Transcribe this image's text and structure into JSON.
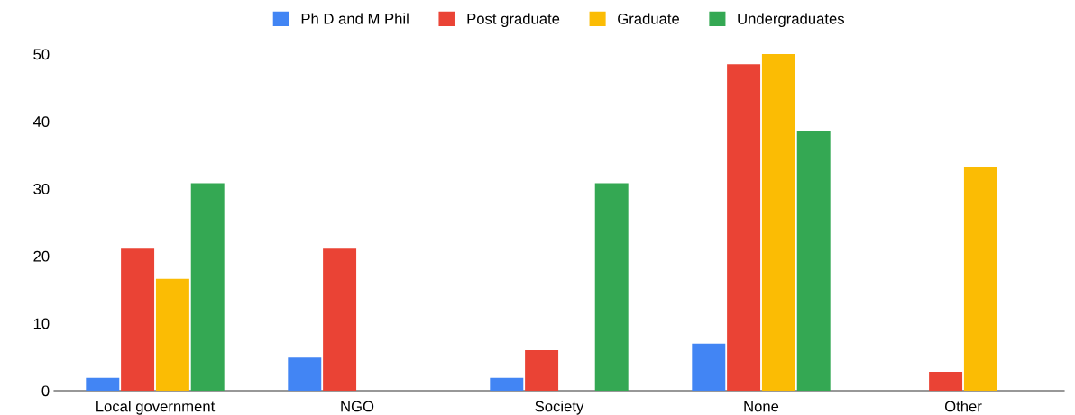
{
  "chart_data": {
    "type": "bar",
    "categories": [
      "Local government",
      "NGO",
      "Society",
      "None",
      "Other"
    ],
    "series": [
      {
        "name": "Ph D and M Phil",
        "color": "#4285f4",
        "values": [
          1.9,
          4.9,
          1.9,
          7.0,
          null
        ]
      },
      {
        "name": "Post graduate",
        "color": "#ea4335",
        "values": [
          21.1,
          21.1,
          6.0,
          48.5,
          2.8
        ]
      },
      {
        "name": "Graduate",
        "color": "#fbbc04",
        "values": [
          16.6,
          null,
          null,
          50,
          33.3
        ]
      },
      {
        "name": "Undergraduates",
        "color": "#34a853",
        "values": [
          30.8,
          null,
          30.8,
          38.5,
          null
        ]
      }
    ],
    "ylim": [
      0,
      50
    ],
    "yticks": [
      0,
      10,
      20,
      30,
      40,
      50
    ],
    "grid": false,
    "legend": "top"
  }
}
